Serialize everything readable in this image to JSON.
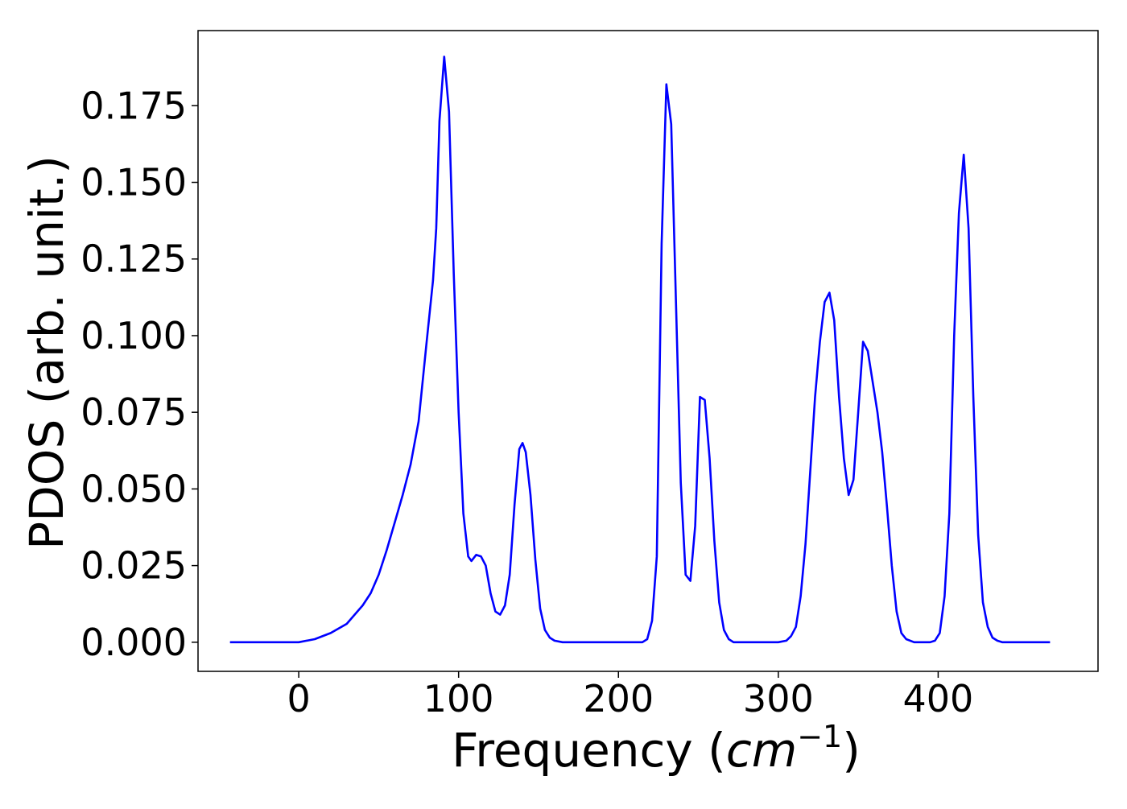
{
  "chart_data": {
    "type": "line",
    "title": "",
    "xlabel_main": "Frequency (",
    "xlabel_unit_base": "cm",
    "xlabel_unit_exp": "−1",
    "xlabel_close": ")",
    "ylabel": "PDOS (arb. unit.)",
    "xlim": [
      -63,
      500
    ],
    "ylim": [
      -0.0095,
      0.1995
    ],
    "xticks": [
      0,
      100,
      200,
      300,
      400
    ],
    "xtick_labels": [
      "0",
      "100",
      "200",
      "300",
      "400"
    ],
    "yticks": [
      0.0,
      0.025,
      0.05,
      0.075,
      0.1,
      0.125,
      0.15,
      0.175
    ],
    "ytick_labels": [
      "0.000",
      "0.025",
      "0.050",
      "0.075",
      "0.100",
      "0.125",
      "0.150",
      "0.175"
    ],
    "grid": false,
    "legend": "none",
    "series": [
      {
        "color": "#0000ff",
        "x": [
          -43,
          0,
          10,
          20,
          30,
          40,
          45,
          50,
          55,
          60,
          65,
          70,
          75,
          80,
          84,
          86,
          88,
          91,
          94,
          97,
          100,
          103,
          106,
          108,
          111,
          114,
          117,
          120,
          123,
          126,
          129,
          132,
          135,
          138,
          140,
          142,
          145,
          148,
          151,
          154,
          157,
          160,
          165,
          170,
          200,
          215,
          218,
          221,
          224,
          227,
          230,
          233,
          236,
          239,
          242,
          245,
          248,
          251,
          254,
          257,
          260,
          263,
          266,
          269,
          272,
          300,
          305,
          308,
          311,
          314,
          317,
          320,
          323,
          326,
          329,
          332,
          335,
          338,
          341,
          344,
          347,
          350,
          353,
          356,
          359,
          362,
          365,
          368,
          371,
          374,
          377,
          380,
          385,
          395,
          398,
          401,
          404,
          407,
          410,
          413,
          416,
          419,
          422,
          425,
          428,
          431,
          434,
          437,
          440,
          445,
          470
        ],
        "y": [
          0.0,
          0.0,
          0.001,
          0.003,
          0.006,
          0.012,
          0.016,
          0.022,
          0.03,
          0.039,
          0.048,
          0.058,
          0.072,
          0.098,
          0.118,
          0.135,
          0.17,
          0.191,
          0.173,
          0.12,
          0.075,
          0.042,
          0.028,
          0.0265,
          0.0285,
          0.028,
          0.025,
          0.016,
          0.01,
          0.009,
          0.012,
          0.022,
          0.045,
          0.063,
          0.065,
          0.062,
          0.048,
          0.027,
          0.011,
          0.004,
          0.0015,
          0.0005,
          0.0,
          0.0,
          0.0,
          0.0,
          0.001,
          0.007,
          0.028,
          0.13,
          0.182,
          0.169,
          0.11,
          0.052,
          0.022,
          0.02,
          0.038,
          0.08,
          0.079,
          0.06,
          0.033,
          0.013,
          0.004,
          0.001,
          0.0,
          0.0,
          0.0005,
          0.002,
          0.005,
          0.015,
          0.032,
          0.056,
          0.08,
          0.098,
          0.111,
          0.114,
          0.105,
          0.08,
          0.06,
          0.048,
          0.053,
          0.075,
          0.098,
          0.095,
          0.085,
          0.075,
          0.062,
          0.044,
          0.025,
          0.01,
          0.003,
          0.001,
          0.0,
          0.0,
          0.0005,
          0.003,
          0.015,
          0.042,
          0.1,
          0.14,
          0.159,
          0.135,
          0.08,
          0.035,
          0.013,
          0.005,
          0.0015,
          0.0005,
          0.0,
          0.0,
          0.0
        ]
      }
    ]
  }
}
